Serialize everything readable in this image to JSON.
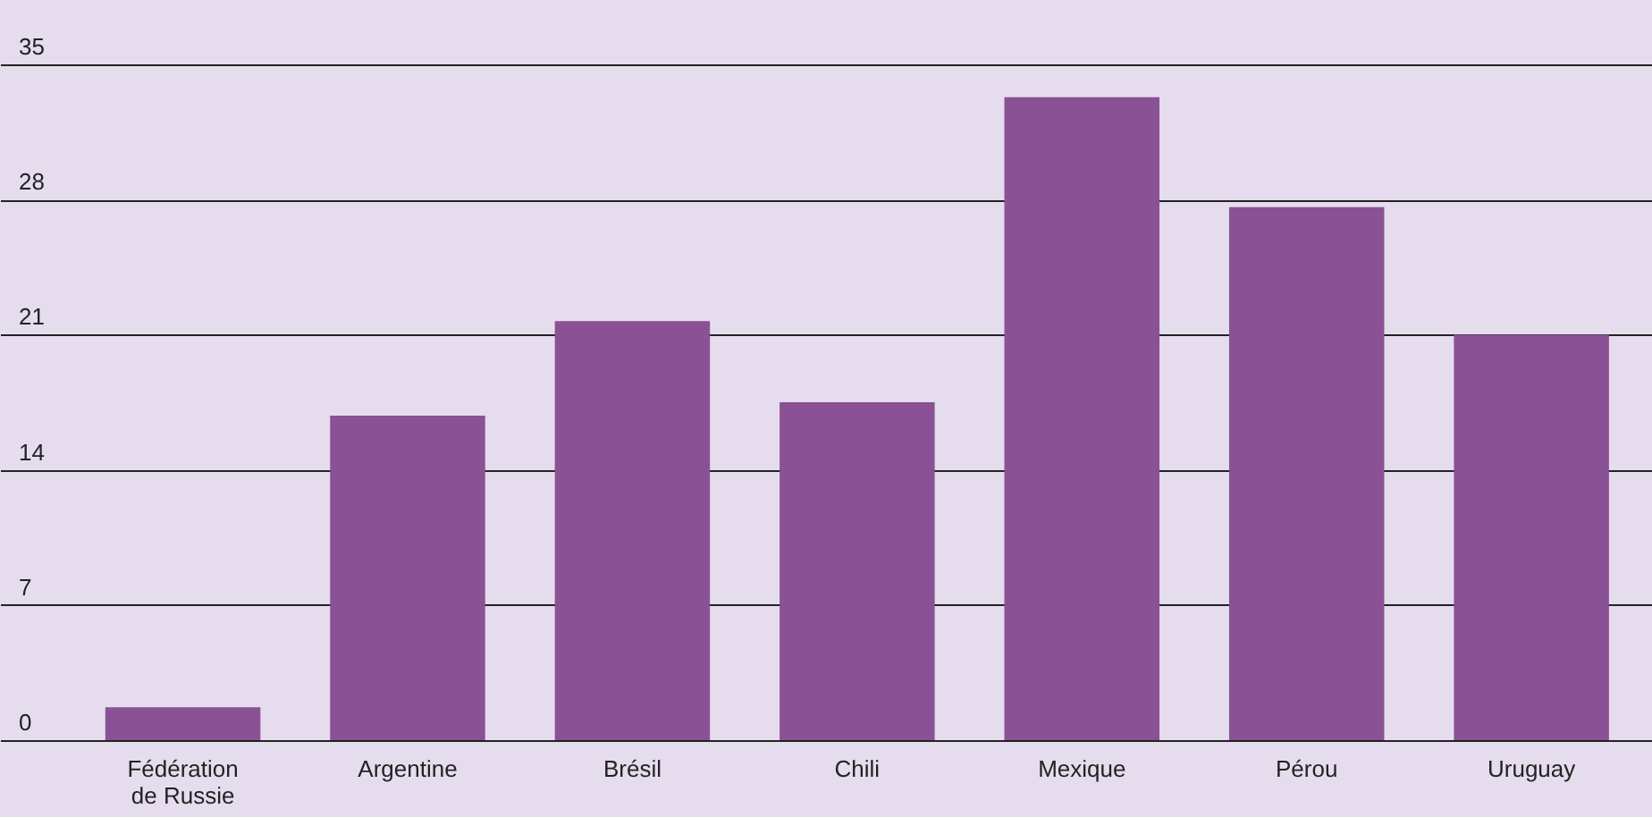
{
  "chart_data": {
    "type": "bar",
    "categories": [
      "Fédération de Russie",
      "Argentine",
      "Brésil",
      "Chili",
      "Mexique",
      "Pérou",
      "Uruguay"
    ],
    "values": [
      1.7,
      16.8,
      21.7,
      17.5,
      33.3,
      27.6,
      21.0
    ],
    "color": "#8a5195",
    "ylim": [
      0,
      35
    ],
    "yticks": [
      0,
      7,
      14,
      21,
      28,
      35
    ],
    "grid": "y"
  }
}
